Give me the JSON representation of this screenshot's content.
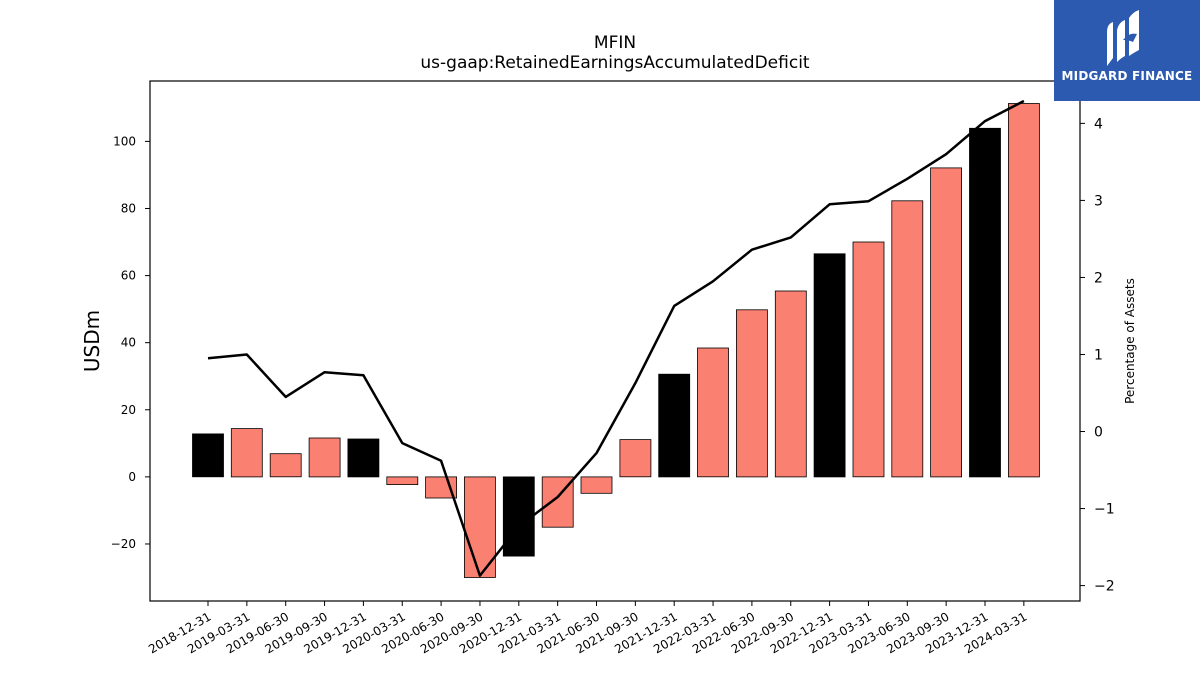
{
  "chart_data": {
    "type": "bar",
    "title": "MFIN",
    "subtitle": "us-gaap:RetainedEarningsAccumulatedDeficit",
    "ylabel": "USDm",
    "ylabel_right": "Percentage of Assets",
    "categories": [
      "2018-12-31",
      "2019-03-31",
      "2019-06-30",
      "2019-09-30",
      "2019-12-31",
      "2020-03-31",
      "2020-06-30",
      "2020-09-30",
      "2020-12-31",
      "2021-03-31",
      "2021-06-30",
      "2021-09-30",
      "2021-12-31",
      "2022-03-31",
      "2022-06-30",
      "2022-09-30",
      "2022-12-31",
      "2023-03-31",
      "2023-06-30",
      "2023-09-30",
      "2023-12-31",
      "2024-03-31"
    ],
    "series": [
      {
        "axis": "left",
        "type": "bar",
        "values": [
          12.8,
          14.4,
          6.9,
          11.6,
          11.3,
          -2.3,
          -6.3,
          -30.0,
          -23.6,
          -15.0,
          -4.9,
          11.1,
          30.6,
          38.4,
          49.8,
          55.4,
          66.5,
          70.0,
          82.3,
          92.1,
          103.9,
          111.3
        ],
        "year_end_color": "#000000",
        "other_color": "#fa8072"
      },
      {
        "axis": "right",
        "type": "line",
        "color": "#000000",
        "values": [
          0.95,
          1.0,
          0.45,
          0.77,
          0.73,
          -0.15,
          -0.38,
          -1.87,
          -1.23,
          -0.85,
          -0.28,
          0.63,
          1.63,
          1.95,
          2.36,
          2.52,
          2.95,
          2.99,
          3.28,
          3.6,
          4.03,
          4.29
        ]
      }
    ],
    "year_end_categories": [
      "2018-12-31",
      "2019-12-31",
      "2020-12-31",
      "2021-12-31",
      "2022-12-31",
      "2023-12-31"
    ],
    "ylim": [
      -37,
      118
    ],
    "ylim_right": [
      -2.2,
      4.55
    ],
    "yticks": [
      -20,
      0,
      20,
      40,
      60,
      80,
      100
    ],
    "yticks_right": [
      -2,
      -1,
      0,
      1,
      2,
      3,
      4
    ],
    "grid": false,
    "legend": "none"
  },
  "logo": {
    "text": "MIDGARD FINANCE",
    "background": "#2b5ab0"
  }
}
